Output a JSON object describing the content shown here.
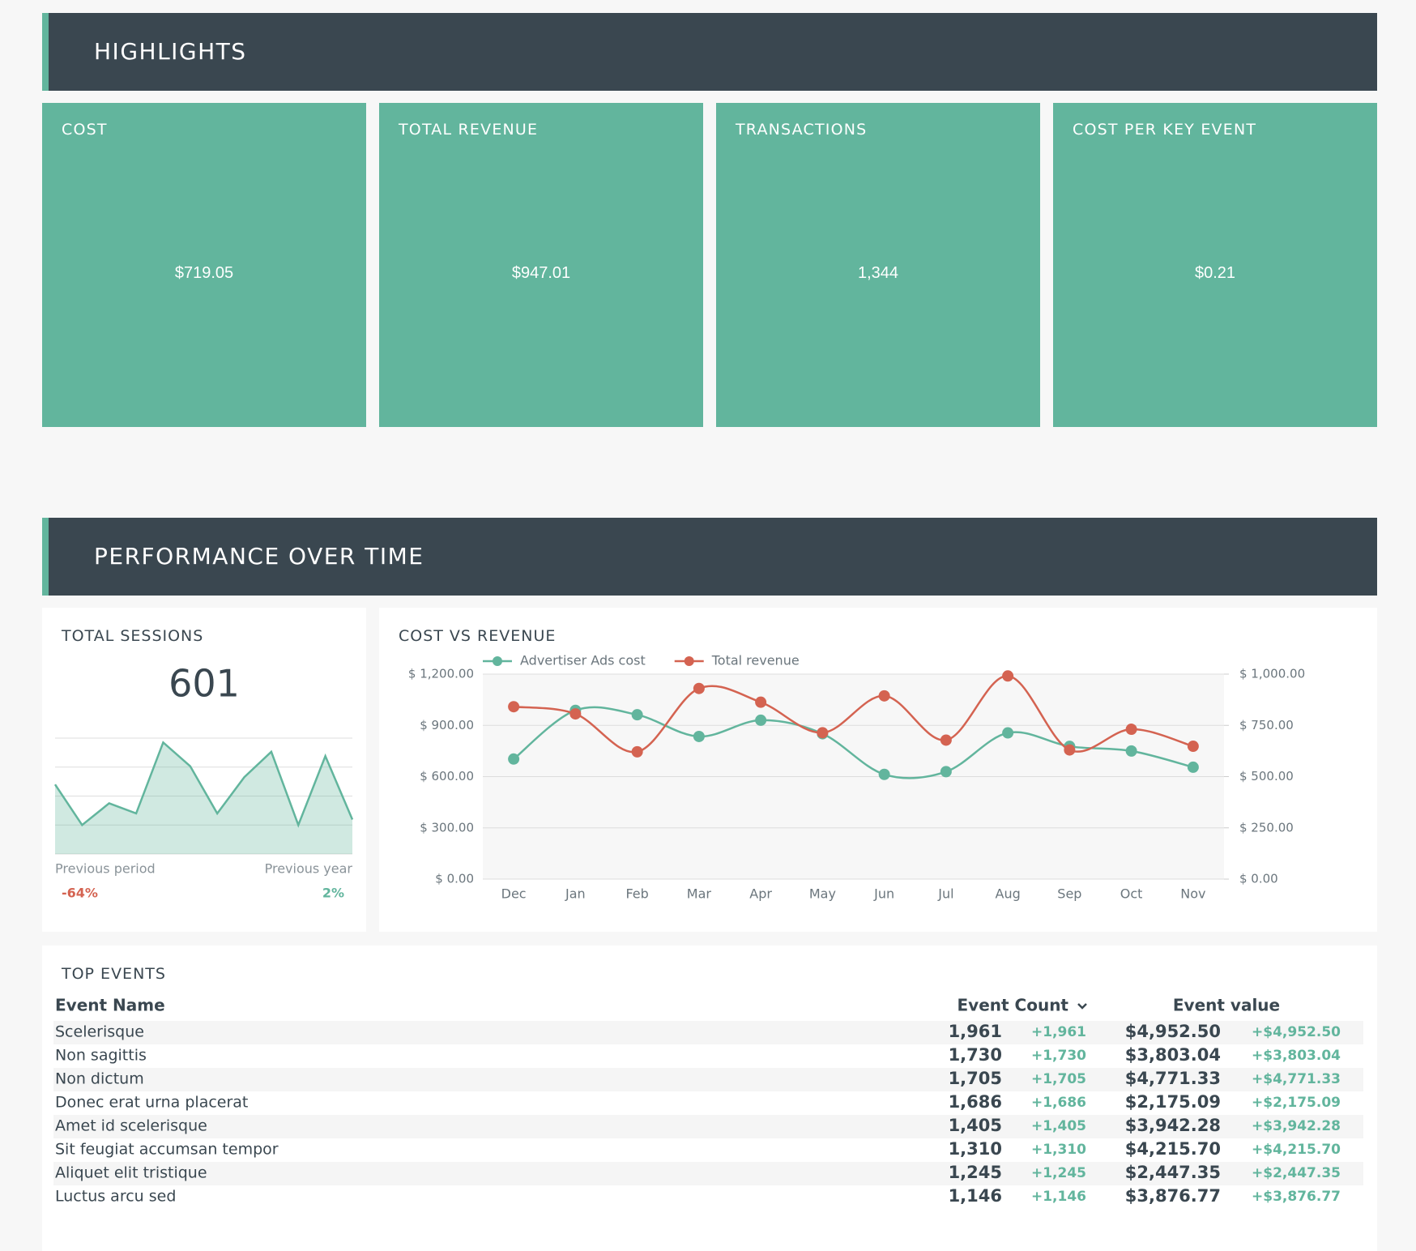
{
  "highlights": {
    "title": "HIGHLIGHTS",
    "cards": [
      {
        "label": "COST",
        "value": "$719.05"
      },
      {
        "label": "TOTAL REVENUE",
        "value": "$947.01"
      },
      {
        "label": "TRANSACTIONS",
        "value": "1,344"
      },
      {
        "label": "COST PER KEY EVENT",
        "value": "$0.21"
      }
    ]
  },
  "performance": {
    "title": "PERFORMANCE OVER TIME"
  },
  "chart_data": [
    {
      "type": "area",
      "title": "TOTAL SESSIONS",
      "total": 601,
      "color": "#62b59d",
      "values": [
        2.4,
        1.0,
        1.75,
        1.4,
        3.85,
        3.03,
        1.4,
        2.65,
        3.53,
        1.0,
        3.38,
        1.19
      ],
      "ylim": [
        0,
        4
      ],
      "yticks": [
        0,
        1,
        2,
        3,
        4
      ],
      "grid": true,
      "comparisons": [
        {
          "label": "Previous period",
          "change": "-64%",
          "color": "#d46351"
        },
        {
          "label": "Previous year",
          "change": "2%",
          "color": "#62b59d"
        }
      ]
    },
    {
      "type": "line",
      "title": "COST VS REVENUE",
      "legend": "top-left",
      "grid": true,
      "categories": [
        "Dec",
        "Jan",
        "Feb",
        "Mar",
        "Apr",
        "May",
        "Jun",
        "Jul",
        "Aug",
        "Sep",
        "Oct",
        "Nov"
      ],
      "series": [
        {
          "name": "Advertiser Ads cost",
          "color": "#62b59d",
          "values": [
            703,
            988,
            962,
            835,
            930,
            851,
            613,
            629,
            856,
            777,
            750,
            655
          ]
        },
        {
          "name": "Total revenue",
          "color": "#d46351",
          "axis": "y2",
          "values": [
            841,
            806,
            621,
            930,
            863,
            714,
            894,
            678,
            991,
            630,
            731,
            648
          ]
        }
      ],
      "ylim": [
        0,
        1200
      ],
      "yticks": [
        {
          "value": 0,
          "label": "$ 0.00"
        },
        {
          "value": 300,
          "label": "$ 300.00"
        },
        {
          "value": 600,
          "label": "$ 600.00"
        },
        {
          "value": 900,
          "label": "$ 900.00"
        },
        {
          "value": 1200,
          "label": "$ 1,200.00"
        }
      ],
      "y2lim": [
        0,
        1000
      ],
      "y2ticks": [
        {
          "value": 0,
          "label": "$ 0.00"
        },
        {
          "value": 250,
          "label": "$ 250.00"
        },
        {
          "value": 500,
          "label": "$ 500.00"
        },
        {
          "value": 750,
          "label": "$ 750.00"
        },
        {
          "value": 1000,
          "label": "$ 1,000.00"
        }
      ]
    }
  ],
  "top_events": {
    "title": "TOP EVENTS",
    "columns": [
      "Event Name",
      "Event Count",
      "Event value"
    ],
    "rows": [
      [
        "Scelerisque",
        "1,961",
        "+1,961",
        "$4,952.50",
        "+$4,952.50"
      ],
      [
        "Non sagittis",
        "1,730",
        "+1,730",
        "$3,803.04",
        "+$3,803.04"
      ],
      [
        "Non dictum",
        "1,705",
        "+1,705",
        "$4,771.33",
        "+$4,771.33"
      ],
      [
        "Donec erat urna placerat",
        "1,686",
        "+1,686",
        "$2,175.09",
        "+$2,175.09"
      ],
      [
        "Amet id scelerisque",
        "1,405",
        "+1,405",
        "$3,942.28",
        "+$3,942.28"
      ],
      [
        "Sit feugiat accumsan tempor",
        "1,310",
        "+1,310",
        "$4,215.70",
        "+$4,215.70"
      ],
      [
        "Aliquet elit tristique",
        "1,245",
        "+1,245",
        "$2,447.35",
        "+$2,447.35"
      ],
      [
        "Luctus arcu sed",
        "1,146",
        "+1,146",
        "$3,876.77",
        "+$3,876.77"
      ]
    ]
  }
}
